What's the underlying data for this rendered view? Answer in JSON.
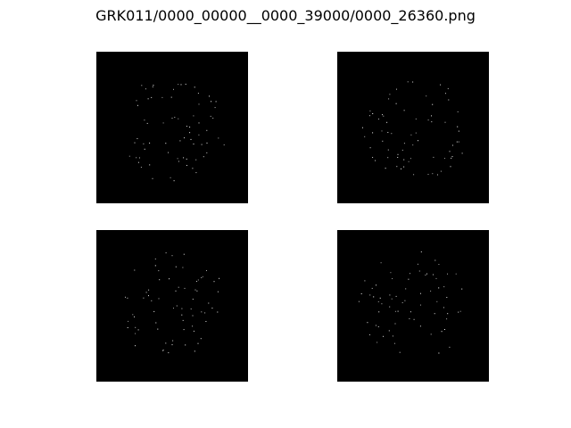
{
  "figure": {
    "title": "GRK011/0000_00000__0000_39000/0000_26360.png",
    "background": "#ffffff",
    "panel_background": "#000000",
    "dot_color": "#d8d8d8"
  },
  "panels": [
    {
      "name": "top-left",
      "seed": 11
    },
    {
      "name": "top-right",
      "seed": 23
    },
    {
      "name": "bottom-left",
      "seed": 37
    },
    {
      "name": "bottom-right",
      "seed": 53
    }
  ]
}
